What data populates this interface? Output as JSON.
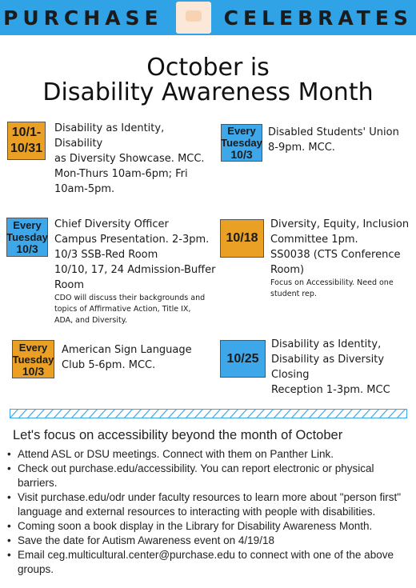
{
  "banner": {
    "left_word": "PURCHASE",
    "right_word": "CELEBRATES"
  },
  "title": {
    "line1": "October is",
    "line2": "Disability Awareness Month"
  },
  "events": [
    {
      "badge": {
        "lines": [
          "10/1-",
          "10/31"
        ]
      },
      "lines": [
        "Disability as Identity, Disability",
        "as Diversity Showcase. MCC.",
        "Mon-Thurs 10am-6pm; Fri",
        "10am-5pm."
      ]
    },
    {
      "badge": {
        "lines": [
          "Every",
          "Tuesday",
          "10/3"
        ]
      },
      "lines": [
        "Disabled Students' Union",
        "8-9pm. MCC."
      ]
    },
    {
      "badge": {
        "lines": [
          "Every",
          "Tuesday",
          "10/3"
        ]
      },
      "lines": [
        "Chief Diversity Officer",
        "Campus Presentation. 2-3pm.",
        "10/3 SSB-Red Room",
        "10/10, 17, 24 Admission-Buffer",
        "Room"
      ],
      "note": [
        "CDO will discuss their backgrounds and",
        "topics of Affirmative Action, Title IX,",
        "ADA, and Diversity."
      ]
    },
    {
      "badge": {
        "lines": [
          "10/18"
        ]
      },
      "lines": [
        "Diversity, Equity, Inclusion",
        "Committee 1pm.",
        "SS0038 (CTS Conference",
        "Room)"
      ],
      "note": [
        "Focus on Accessibility. Need one",
        "student rep."
      ]
    },
    {
      "badge": {
        "lines": [
          "Every",
          "Tuesday",
          "10/3"
        ]
      },
      "lines": [
        "American Sign Language",
        "Club 5-6pm. MCC."
      ]
    },
    {
      "badge": {
        "lines": [
          "10/25"
        ]
      },
      "lines": [
        "Disability as Identity,",
        "Disability as Diversity Closing",
        "Reception 1-3pm. MCC"
      ]
    }
  ],
  "focus": {
    "heading": "Let's focus on accessibility beyond the month of October",
    "items": [
      [
        "Attend ASL or DSU meetings. Connect with them on Panther Link."
      ],
      [
        "Check out purchase.edu/accessibility.  You can report electronic or physical",
        "barriers."
      ],
      [
        "Visit purchase.edu/odr under faculty resources to learn more about \"person first\"",
        "language and external resources to interacting with people with disabilities."
      ],
      [
        "Coming soon a book display in the Library  for Disability Awareness Month."
      ],
      [
        "Save the date for Autism Awareness event on 4/19/18"
      ],
      [
        "Email ceg.multicultural.center@purchase.edu to connect with one of the above",
        "groups."
      ]
    ]
  },
  "colors": {
    "banner": "#2fa3e6",
    "orange_badge": "#e9a024",
    "blue_badge": "#3ea7ea",
    "divider": "#3ea7ea"
  },
  "icons": {
    "logo": "purchase-logo-icon"
  }
}
